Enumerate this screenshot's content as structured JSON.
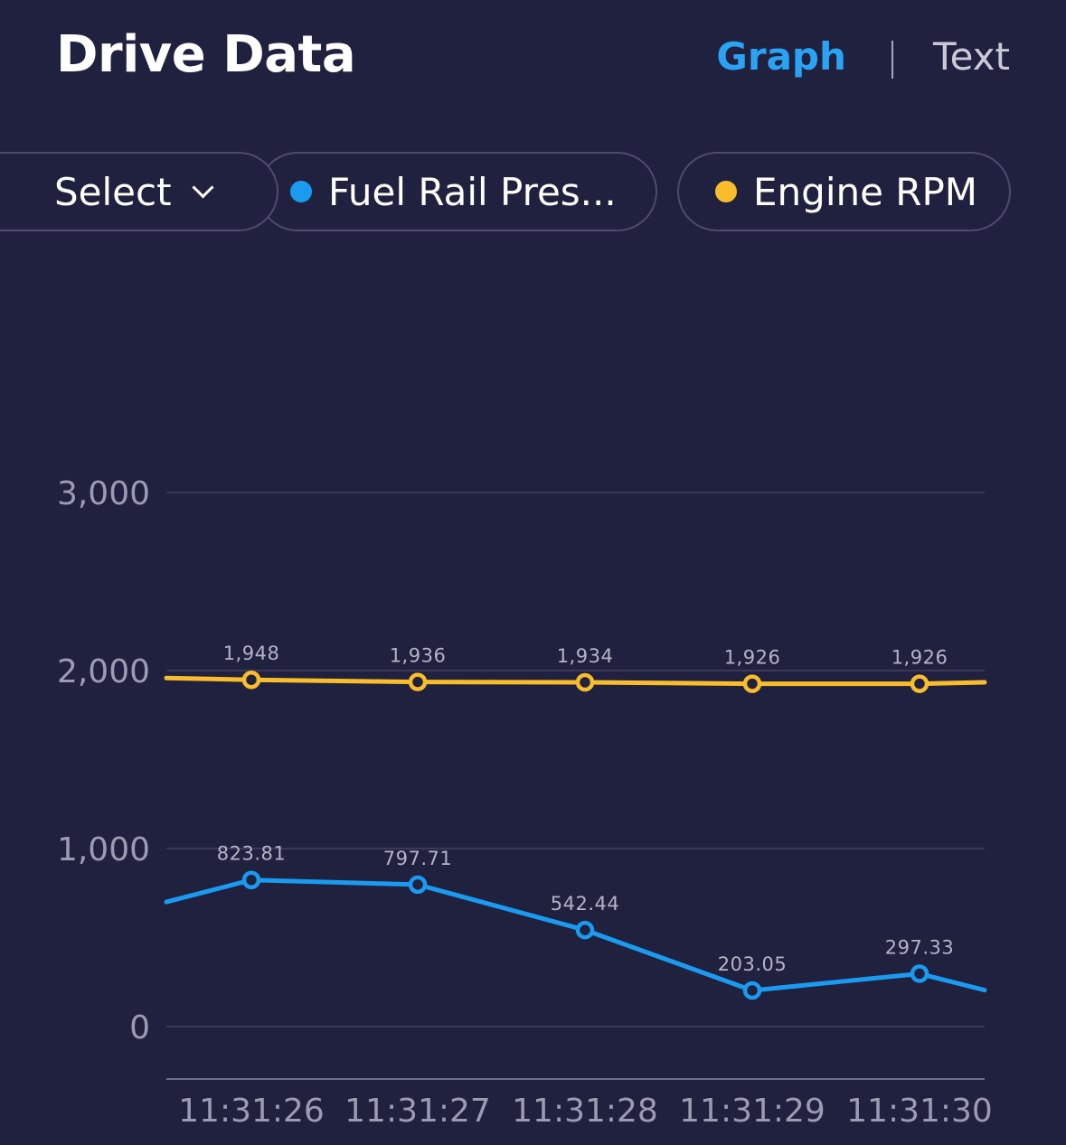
{
  "header": {
    "title": "Drive Data",
    "toggle": {
      "graph_label": "Graph",
      "divider": "|",
      "text_label": "Text",
      "active": "Graph"
    }
  },
  "selectors": {
    "select_label": "Select",
    "chips": [
      {
        "label": "Fuel Rail Pres...",
        "color": "#1a9bf0"
      },
      {
        "label": "Engine RPM",
        "color": "#f9bd2b"
      }
    ]
  },
  "colors": {
    "background": "#20213f",
    "accent": "#2aa3f5",
    "grid": "#3a3858",
    "axis": "#6e6c88",
    "tick_label": "#9c9bb3",
    "data_label": "#b4b3c8"
  },
  "chart_data": {
    "type": "line",
    "x": [
      "11:31:26",
      "11:31:27",
      "11:31:28",
      "11:31:29",
      "11:31:30"
    ],
    "x_start": 700,
    "x_end": 205,
    "ylim": [
      0,
      3000
    ],
    "yticks": [
      0,
      1000,
      2000,
      3000
    ],
    "ytick_labels": [
      "0",
      "1,000",
      "2,000",
      "3,000"
    ],
    "grid": true,
    "series": [
      {
        "name": "Engine RPM",
        "color": "#f9bd2b",
        "values": [
          1948,
          1936,
          1934,
          1926,
          1926
        ],
        "labels": [
          "1,948",
          "1,936",
          "1,934",
          "1,926",
          "1,926"
        ],
        "start": 1958,
        "end": 1934
      },
      {
        "name": "Fuel Rail Pres...",
        "color": "#1a9bf0",
        "values": [
          823.81,
          797.71,
          542.44,
          203.05,
          297.33
        ],
        "labels": [
          "823.81",
          "797.71",
          "542.44",
          "203.05",
          "297.33"
        ],
        "start": 700,
        "end": 205
      }
    ]
  }
}
